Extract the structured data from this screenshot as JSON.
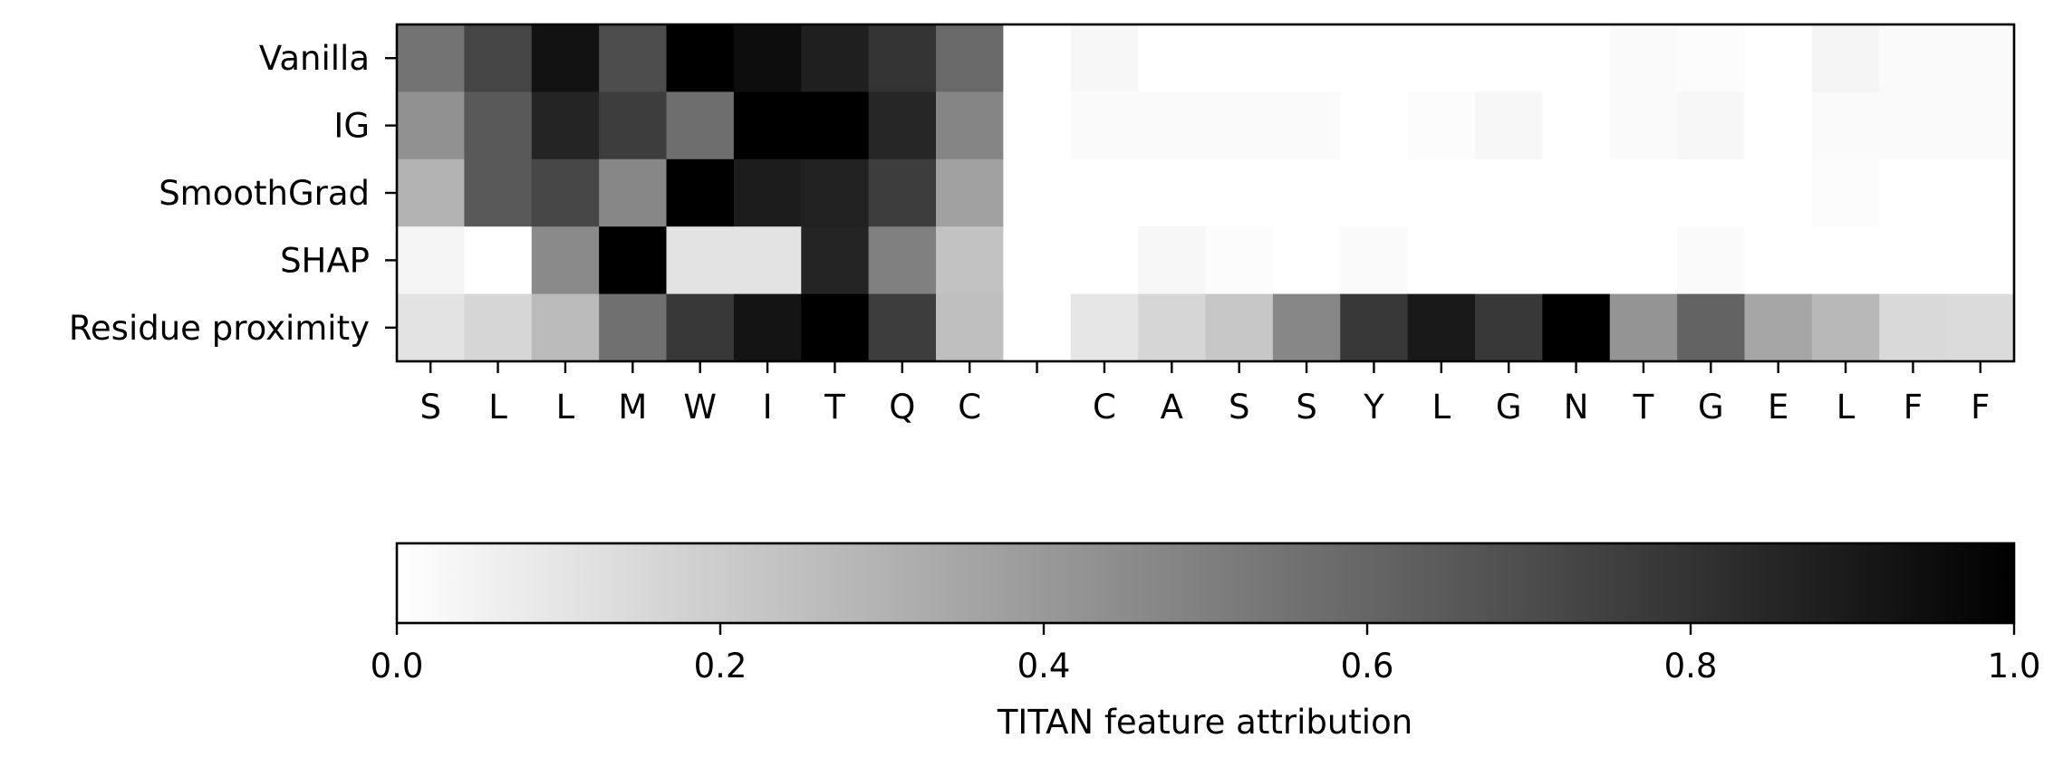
{
  "chart_data": {
    "type": "heatmap",
    "rows": [
      "Vanilla",
      "IG",
      "SmoothGrad",
      "SHAP",
      "Residue proximity"
    ],
    "columns": [
      "S",
      "L",
      "L",
      "M",
      "W",
      "I",
      "T",
      "Q",
      "C",
      "",
      "C",
      "A",
      "S",
      "S",
      "Y",
      "L",
      "G",
      "N",
      "T",
      "G",
      "E",
      "L",
      "F",
      "F"
    ],
    "values": [
      [
        0.55,
        0.73,
        0.93,
        0.7,
        1.0,
        0.95,
        0.88,
        0.8,
        0.59,
        0.0,
        0.03,
        0.0,
        0.0,
        0.0,
        0.0,
        0.0,
        0.0,
        0.0,
        0.02,
        0.01,
        0.0,
        0.04,
        0.02,
        0.02
      ],
      [
        0.43,
        0.65,
        0.86,
        0.76,
        0.57,
        1.0,
        1.0,
        0.85,
        0.48,
        0.0,
        0.02,
        0.02,
        0.02,
        0.02,
        0.0,
        0.01,
        0.03,
        0.0,
        0.02,
        0.03,
        0.0,
        0.02,
        0.02,
        0.02
      ],
      [
        0.3,
        0.65,
        0.72,
        0.47,
        1.0,
        0.89,
        0.87,
        0.76,
        0.37,
        0.0,
        0.0,
        0.0,
        0.0,
        0.0,
        0.0,
        0.0,
        0.0,
        0.0,
        0.0,
        0.0,
        0.0,
        0.01,
        0.0,
        0.0
      ],
      [
        0.04,
        0.0,
        0.46,
        1.0,
        0.11,
        0.11,
        0.86,
        0.5,
        0.24,
        0.0,
        0.0,
        0.03,
        0.01,
        0.0,
        0.02,
        0.0,
        0.0,
        0.0,
        0.0,
        0.02,
        0.0,
        0.0,
        0.0,
        0.0
      ],
      [
        0.11,
        0.16,
        0.27,
        0.56,
        0.78,
        0.92,
        1.0,
        0.76,
        0.25,
        0.0,
        0.1,
        0.16,
        0.22,
        0.47,
        0.78,
        0.9,
        0.78,
        1.0,
        0.42,
        0.61,
        0.35,
        0.28,
        0.15,
        0.14
      ]
    ],
    "colormap": "Greys",
    "colorbar": {
      "ticks": [
        "0.0",
        "0.2",
        "0.4",
        "0.6",
        "0.8",
        "1.0"
      ],
      "range": [
        0,
        1
      ],
      "label": "TITAN feature attribution",
      "orientation": "horizontal"
    },
    "title": "",
    "xlabel": "",
    "ylabel": ""
  }
}
